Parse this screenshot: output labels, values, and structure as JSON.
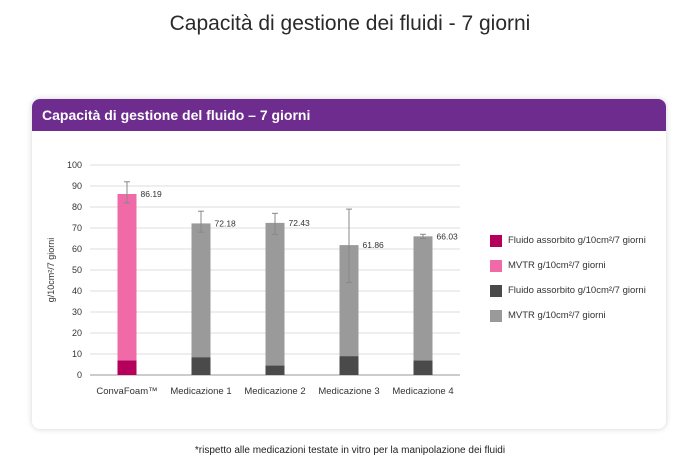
{
  "page_title": "Capacità di gestione dei fluidi - 7 giorni",
  "card_title": "Capacità di gestione del fluido – 7 giorni",
  "footnote": "*rispetto alle medicazioni testate in vitro per la manipolazione dei fluidi",
  "chart_data": {
    "type": "bar",
    "stacked": true,
    "categories": [
      "ConvaFoam™",
      "Medicazione 1",
      "Medicazione 2",
      "Medicazione 3",
      "Medicazione 4"
    ],
    "series": [
      {
        "name": "Fluido assorbito g/10cm²/7 giorni",
        "values": [
          7,
          8.5,
          4.5,
          9,
          7
        ]
      },
      {
        "name": "MVTR g/10cm²/7 giorni",
        "values": [
          79.19,
          63.68,
          67.93,
          52.86,
          59.03
        ]
      }
    ],
    "totals": [
      86.19,
      72.18,
      72.43,
      61.86,
      66.03
    ],
    "total_labels": [
      "86.19",
      "72.18",
      "72.43",
      "61.86",
      "66.03"
    ],
    "error_bars": [
      [
        82,
        92
      ],
      [
        68,
        78
      ],
      [
        67,
        77
      ],
      [
        44,
        79
      ],
      [
        65,
        67
      ]
    ],
    "ylabel": "g/10cm²/7 giorni",
    "xlabel": "",
    "ylim": [
      0,
      100
    ],
    "yticks": [
      0,
      10,
      20,
      30,
      40,
      50,
      60,
      70,
      80,
      90,
      100
    ],
    "grid": true,
    "colors": {
      "highlight_bottom": "#b5005b",
      "highlight_top": "#f06aa7",
      "other_bottom": "#4a4a4a",
      "other_top": "#9a9a9a"
    },
    "legend": [
      {
        "label": "Fluido assorbito g/10cm²/7 giorni",
        "color": "#b5005b"
      },
      {
        "label": "MVTR g/10cm²/7 giorni",
        "color": "#f06aa7"
      },
      {
        "label": "Fluido assorbito g/10cm²/7 giorni",
        "color": "#4a4a4a"
      },
      {
        "label": "MVTR g/10cm²/7 giorni",
        "color": "#9a9a9a"
      }
    ],
    "legend_position": "right"
  }
}
